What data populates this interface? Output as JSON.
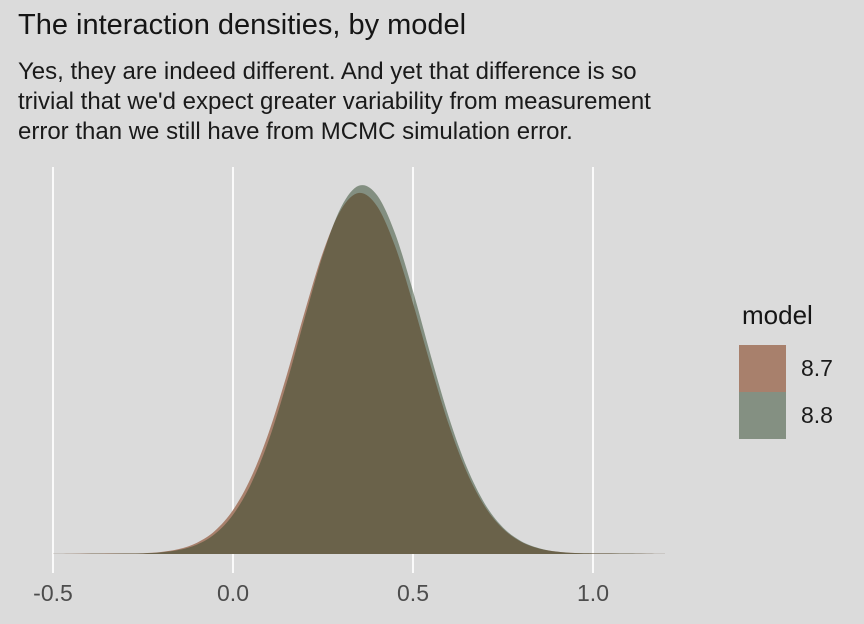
{
  "title": "The interaction densities, by model",
  "subtitle_lines": [
    "Yes, they are indeed different. And yet that difference is so",
    "trivial that we'd expect greater variability from measurement",
    "error than we still have from MCMC simulation error."
  ],
  "colors": {
    "background": "#DBDBDB",
    "gridline": "#FAFAFA",
    "axis_text": "#4D4D4D",
    "title_text": "#151515",
    "model_87_fill": "#A8806C",
    "model_88_fill": "#849082",
    "model_88_overlay_layer": "#2C4428",
    "overlap_fill": "#6A624D"
  },
  "x_axis": {
    "tick_labels": [
      "-0.5",
      "0.0",
      "0.5",
      "1.0"
    ],
    "tick_values": [
      -0.5,
      0.0,
      0.5,
      1.0
    ]
  },
  "legend": {
    "title": "model",
    "items": [
      {
        "label": "8.7",
        "color": "#A8806C"
      },
      {
        "label": "8.8",
        "color": "#849082"
      }
    ]
  },
  "chart_data": {
    "type": "area",
    "title": "The interaction densities, by model",
    "xlabel": "",
    "ylabel": "",
    "xlim": [
      -0.55,
      1.25
    ],
    "ylim": [
      0,
      2.5
    ],
    "grid": "vertical-major-only",
    "legend_position": "right",
    "x_ticks": [
      -0.5,
      0.0,
      0.5,
      1.0
    ],
    "x": [
      -0.5,
      -0.45,
      -0.4,
      -0.35,
      -0.3,
      -0.25,
      -0.2,
      -0.15,
      -0.1,
      -0.05,
      0.0,
      0.05,
      0.1,
      0.15,
      0.2,
      0.25,
      0.3,
      0.35,
      0.4,
      0.45,
      0.5,
      0.55,
      0.6,
      0.65,
      0.7,
      0.75,
      0.8,
      0.85,
      0.9,
      0.95,
      1.0,
      1.05,
      1.1,
      1.15,
      1.2
    ],
    "series": [
      {
        "name": "8.7",
        "fill": "#A8806C",
        "opacity": 1,
        "values": [
          0.001,
          0.002,
          0.003,
          0.004,
          0.004,
          0.005,
          0.013,
          0.032,
          0.072,
          0.148,
          0.28,
          0.487,
          0.779,
          1.146,
          1.549,
          1.923,
          2.193,
          2.3,
          2.216,
          1.962,
          1.596,
          1.194,
          0.82,
          0.518,
          0.301,
          0.161,
          0.078,
          0.035,
          0.015,
          0.006,
          0.004,
          0.004,
          0.003,
          0.002,
          0.001
        ]
      },
      {
        "name": "8.8",
        "fill": "#2C4428",
        "opacity": 0.5,
        "values": [
          0.001,
          0.001,
          0.002,
          0.002,
          0.003,
          0.004,
          0.01,
          0.026,
          0.06,
          0.128,
          0.25,
          0.446,
          0.729,
          1.096,
          1.509,
          1.906,
          2.208,
          2.346,
          2.286,
          2.043,
          1.674,
          1.258,
          0.868,
          0.549,
          0.318,
          0.169,
          0.082,
          0.037,
          0.015,
          0.006,
          0.004,
          0.004,
          0.003,
          0.002,
          0.001
        ]
      }
    ]
  }
}
